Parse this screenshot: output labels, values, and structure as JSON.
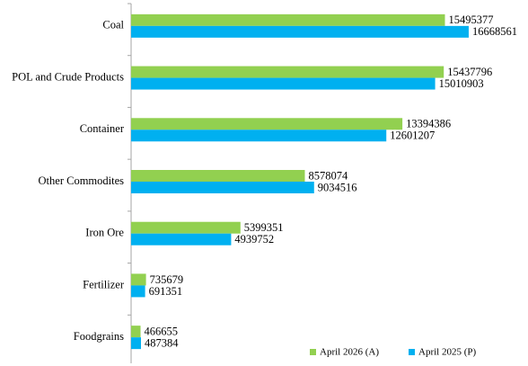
{
  "chart_data": {
    "type": "hbar",
    "categories": [
      "Coal",
      "POL and Crude Products",
      "Container",
      "Other Commodites",
      "Iron Ore",
      "Fertilizer",
      "Foodgrains"
    ],
    "series": [
      {
        "name": "April 2026 (A)",
        "color": "#92d050",
        "values": [
          15495377,
          15437796,
          13394386,
          8578074,
          5399351,
          735679,
          466655
        ]
      },
      {
        "name": "April 2025 (P)",
        "color": "#00b0f0",
        "values": [
          16668561,
          15010903,
          12601207,
          9034516,
          4939752,
          691351,
          487384
        ]
      }
    ],
    "xlim": [
      0,
      18000000
    ],
    "legend": "bottom-right"
  }
}
